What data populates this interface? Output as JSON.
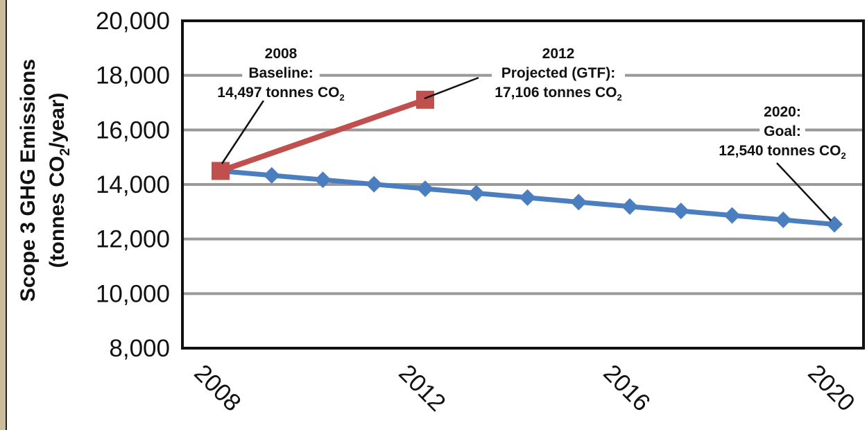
{
  "chart_data": {
    "type": "line",
    "ylabel": {
      "line1": "Scope 3 GHG Emissions",
      "line2_pre": "(tonnes CO",
      "line2_sub": "2",
      "line2_post": "/year)"
    },
    "ylim": [
      8000,
      20000
    ],
    "xlim": [
      2008,
      2020
    ],
    "y_ticks": [
      "8,000",
      "10,000",
      "12,000",
      "14,000",
      "16,000",
      "18,000",
      "20,000"
    ],
    "y_tick_values": [
      8000,
      10000,
      12000,
      14000,
      16000,
      18000,
      20000
    ],
    "x_ticks": [
      "2008",
      "2012",
      "2016",
      "2020"
    ],
    "x_tick_values": [
      2008,
      2012,
      2016,
      2020
    ],
    "grid": true,
    "series": [
      {
        "color": "#4a7ebf",
        "marker": "diamond",
        "x": [
          2008,
          2009,
          2010,
          2011,
          2012,
          2013,
          2014,
          2015,
          2016,
          2017,
          2018,
          2019,
          2020
        ],
        "values": [
          14497,
          14334,
          14171,
          14008,
          13845,
          13682,
          13519,
          13356,
          13193,
          13030,
          12866,
          12703,
          12540
        ]
      },
      {
        "color": "#c0504d",
        "marker": "square",
        "x": [
          2008,
          2012
        ],
        "values": [
          14497,
          17106
        ]
      }
    ],
    "annotations": [
      {
        "lines": [
          "2008",
          "Baseline:",
          "14,497 tonnes CO"
        ],
        "sub": "2",
        "point": [
          2008,
          14497
        ]
      },
      {
        "lines": [
          "2012",
          "Projected (GTF):",
          "17,106 tonnes CO"
        ],
        "sub": "2",
        "point": [
          2012,
          17106
        ]
      },
      {
        "lines": [
          "2020:",
          "Goal:",
          "12,540 tonnes CO"
        ],
        "sub": "2",
        "point": [
          2020,
          12540
        ]
      }
    ]
  }
}
